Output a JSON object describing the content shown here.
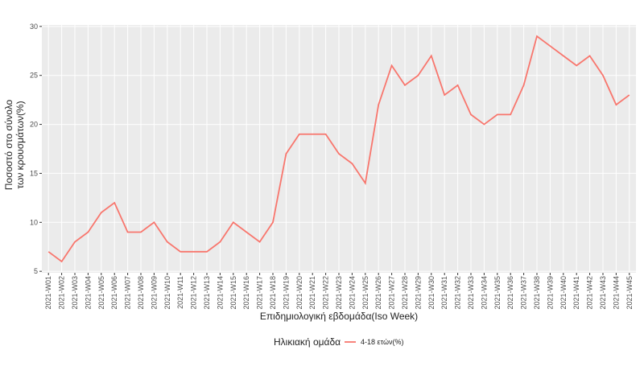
{
  "chart_data": {
    "type": "line",
    "x_label": "Επιδημιολογική εβδομάδα(Iso Week)",
    "y_label": [
      "Ποσοστό στο σύνολο",
      "των κρουσμάτων(%)"
    ],
    "legend_title": "Ηλικιακή ομάδα",
    "legend_position": "bottom",
    "grid": true,
    "categories": [
      "2021-W01",
      "2021-W02",
      "2021-W03",
      "2021-W04",
      "2021-W05",
      "2021-W06",
      "2021-W07",
      "2021-W08",
      "2021-W09",
      "2021-W10",
      "2021-W11",
      "2021-W12",
      "2021-W13",
      "2021-W14",
      "2021-W15",
      "2021-W16",
      "2021-W17",
      "2021-W18",
      "2021-W19",
      "2021-W20",
      "2021-W21",
      "2021-W22",
      "2021-W23",
      "2021-W24",
      "2021-W25",
      "2021-W26",
      "2021-W27",
      "2021-W28",
      "2021-W29",
      "2021-W30",
      "2021-W31",
      "2021-W32",
      "2021-W33",
      "2021-W34",
      "2021-W35",
      "2021-W36",
      "2021-W37",
      "2021-W38",
      "2021-W39",
      "2021-W40",
      "2021-W41",
      "2021-W42",
      "2021-W43",
      "2021-W44",
      "2021-W45"
    ],
    "series": [
      {
        "name": "4-18 ετών(%)",
        "color": "#F8766D",
        "values": [
          7,
          6,
          8,
          9,
          11,
          12,
          9,
          9,
          10,
          8,
          7,
          7,
          7,
          8,
          10,
          9,
          8,
          10,
          17,
          19,
          19,
          19,
          17,
          16,
          14,
          22,
          26,
          24,
          25,
          27,
          23,
          24,
          21,
          20,
          21,
          21,
          24,
          29,
          28,
          27,
          26,
          27,
          25,
          22,
          23
        ]
      }
    ],
    "ylim": [
      4.85,
      30.15
    ],
    "yticks": [
      5,
      10,
      15,
      20,
      25,
      30
    ]
  }
}
